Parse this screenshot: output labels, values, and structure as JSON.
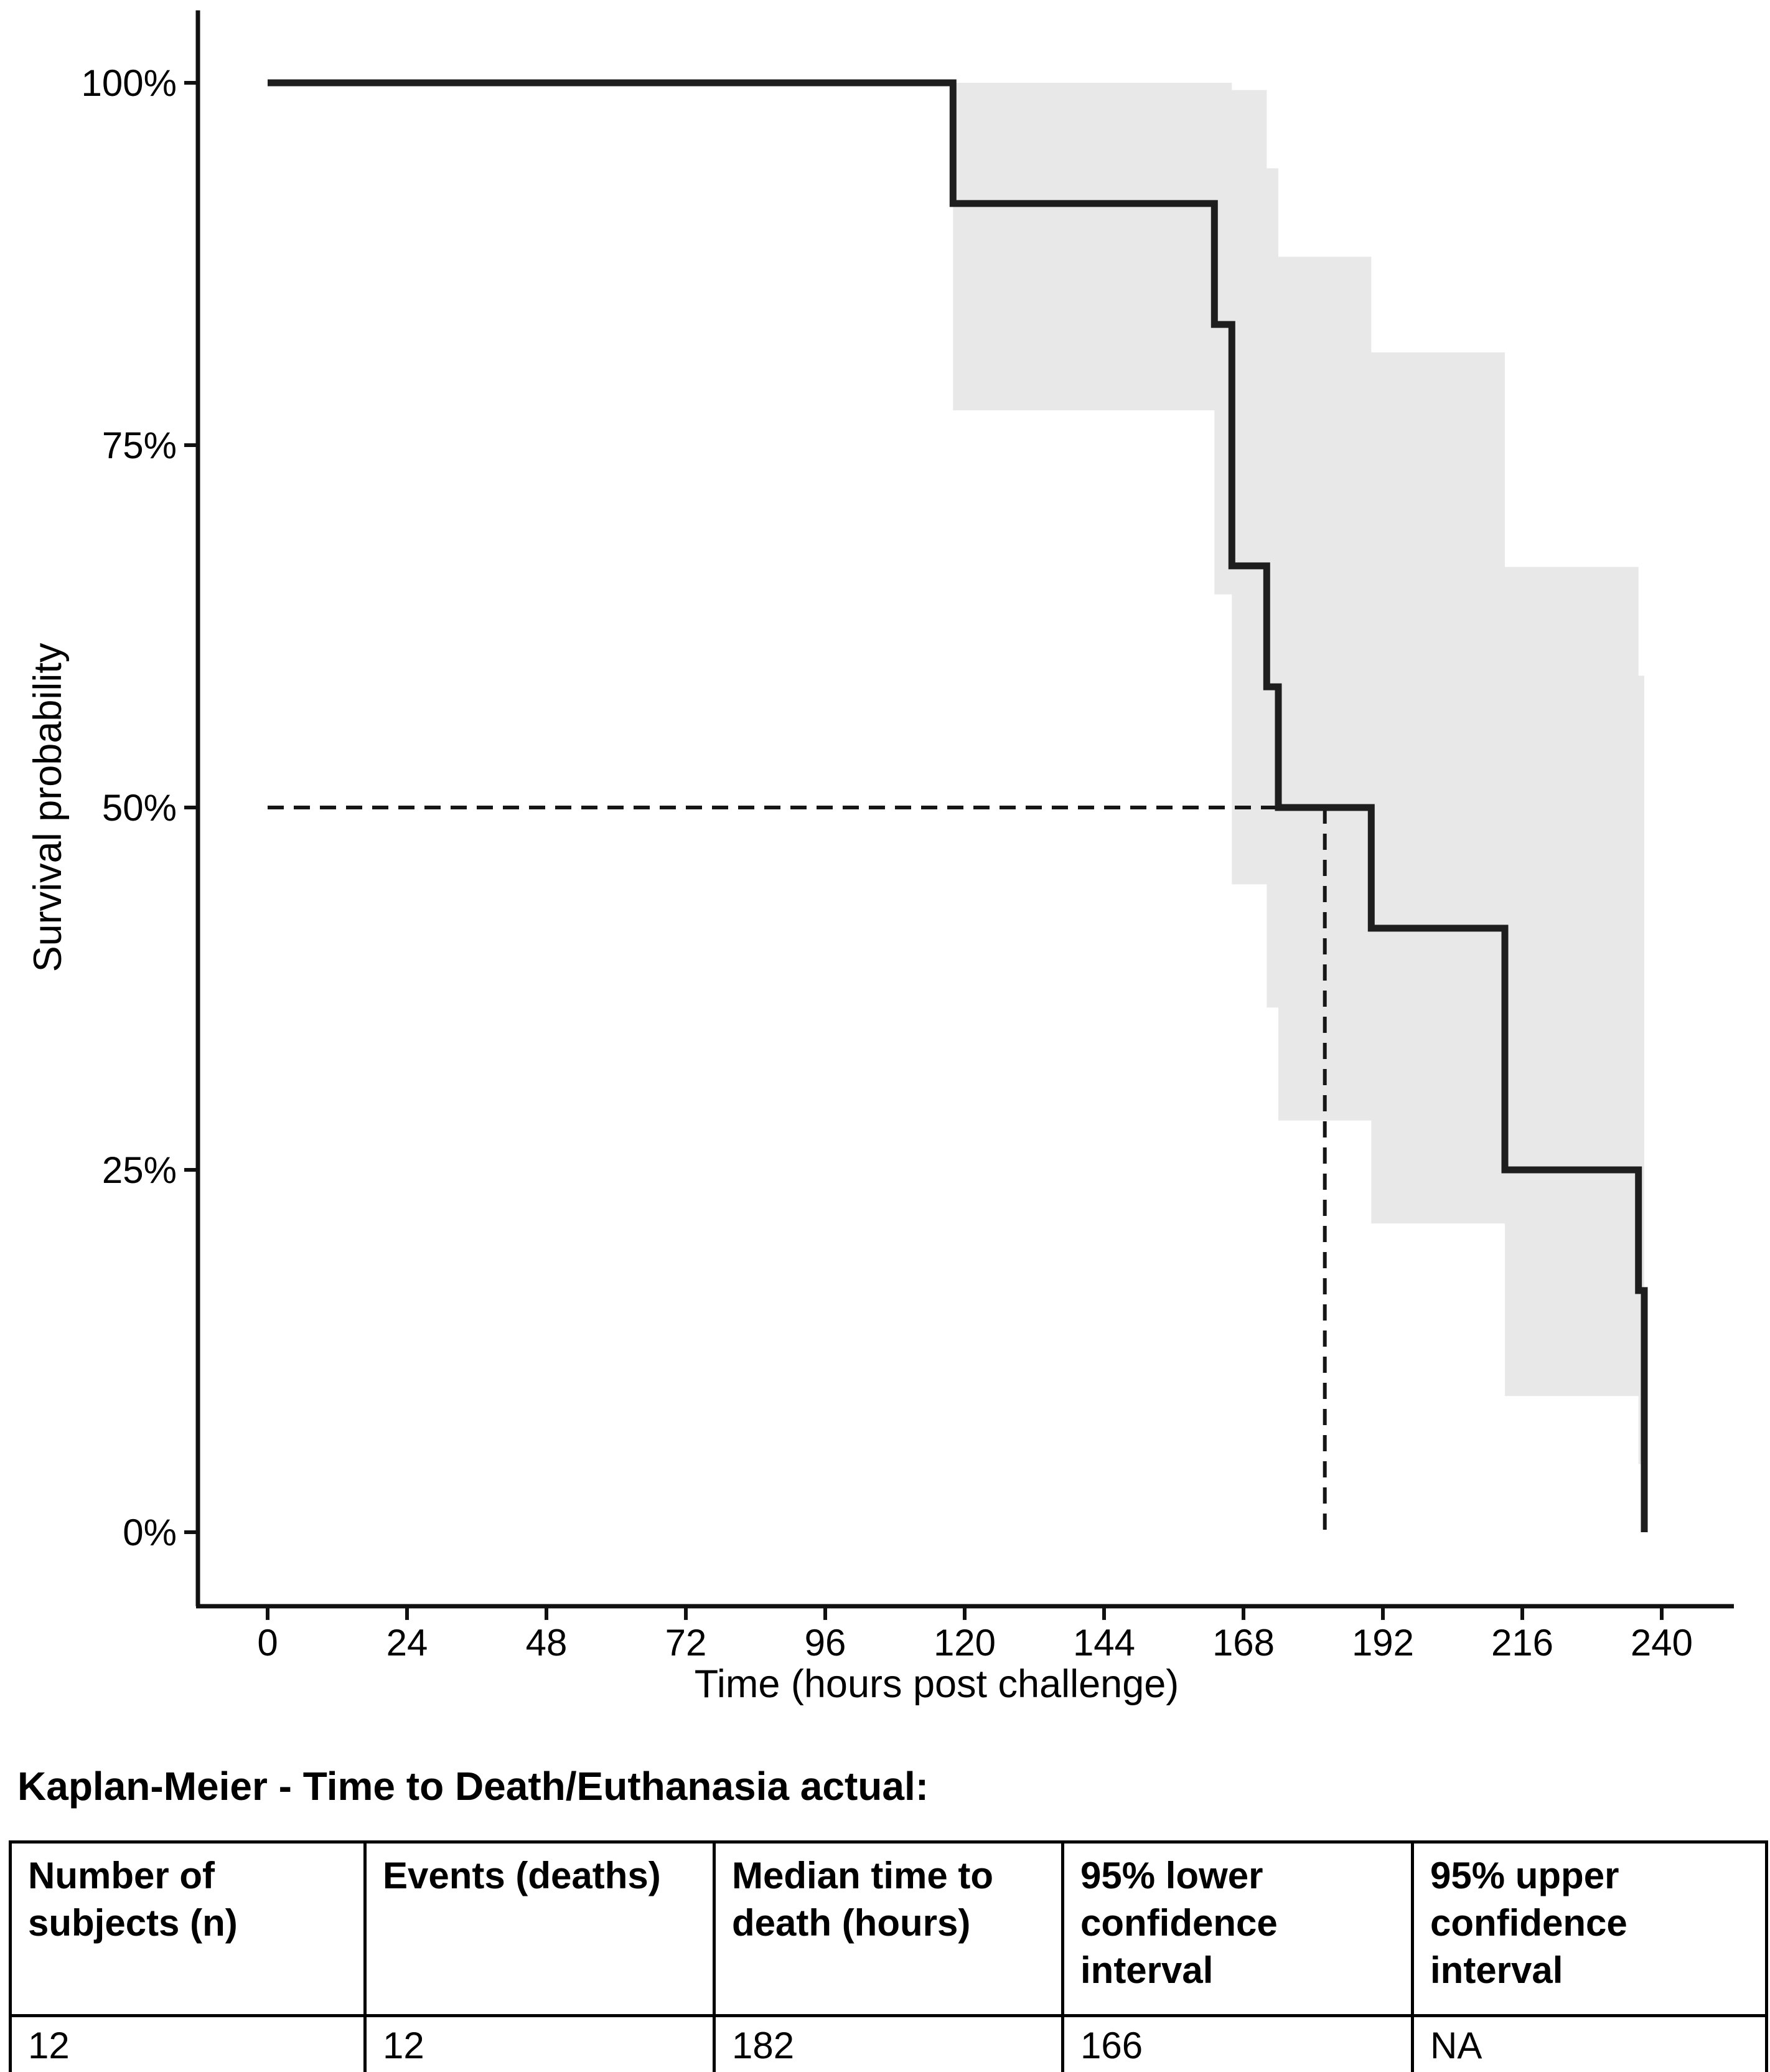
{
  "table_title": "Kaplan-Meier - Time to Death/Euthanasia actual:",
  "table": {
    "headers": [
      "Number of subjects (n)",
      "Events (deaths)",
      "Median time to death (hours)",
      "95% lower confidence interval",
      "95% upper confidence interval"
    ],
    "row": [
      "12",
      "12",
      "182",
      "166",
      "NA"
    ]
  },
  "chart_data": {
    "type": "line",
    "subtype": "kaplan-meier-step",
    "title": "",
    "xlabel": "Time (hours post challenge)",
    "ylabel": "Survival probability",
    "xlim": [
      -12,
      252
    ],
    "ylim": [
      -5,
      105
    ],
    "grid": false,
    "legend": "none",
    "x_axis": {
      "label": "Time (hours post challenge)",
      "ticks": [
        {
          "v": 0,
          "label": "0"
        },
        {
          "v": 24,
          "label": "24"
        },
        {
          "v": 48,
          "label": "48"
        },
        {
          "v": 72,
          "label": "72"
        },
        {
          "v": 96,
          "label": "96"
        },
        {
          "v": 120,
          "label": "120"
        },
        {
          "v": 144,
          "label": "144"
        },
        {
          "v": 168,
          "label": "168"
        },
        {
          "v": 192,
          "label": "192"
        },
        {
          "v": 216,
          "label": "216"
        },
        {
          "v": 240,
          "label": "240"
        }
      ]
    },
    "y_axis": {
      "label": "Survival probability",
      "ticks": [
        {
          "v": 0,
          "label": "0%"
        },
        {
          "v": 25,
          "label": "25%"
        },
        {
          "v": 50,
          "label": "50%"
        },
        {
          "v": 75,
          "label": "75%"
        },
        {
          "v": 100,
          "label": "100%"
        }
      ]
    },
    "n_subjects": 12,
    "n_events": 12,
    "event_times_hours": [
      118,
      163,
      166,
      166,
      172,
      174,
      190,
      213,
      213,
      236,
      237,
      237
    ],
    "survival_steps": [
      [
        0,
        100
      ],
      [
        118,
        100
      ],
      [
        118,
        91.67
      ],
      [
        163,
        91.67
      ],
      [
        163,
        83.33
      ],
      [
        166,
        83.33
      ],
      [
        166,
        66.67
      ],
      [
        172,
        66.67
      ],
      [
        172,
        58.33
      ],
      [
        174,
        58.33
      ],
      [
        174,
        50
      ],
      [
        190,
        50
      ],
      [
        190,
        41.67
      ],
      [
        213,
        41.67
      ],
      [
        213,
        25
      ],
      [
        236,
        25
      ],
      [
        236,
        16.67
      ],
      [
        237,
        16.67
      ],
      [
        237,
        0
      ]
    ],
    "ci_upper_steps": [
      [
        118,
        100
      ],
      [
        166,
        100
      ],
      [
        166,
        99.5
      ],
      [
        172,
        99.5
      ],
      [
        172,
        94.1
      ],
      [
        174,
        94.1
      ],
      [
        174,
        88.0
      ],
      [
        190,
        88.0
      ],
      [
        190,
        81.4
      ],
      [
        213,
        81.4
      ],
      [
        213,
        66.6
      ],
      [
        236,
        66.6
      ],
      [
        236,
        59.1
      ],
      [
        237,
        59.1
      ]
    ],
    "ci_lower_steps": [
      [
        118,
        77.4
      ],
      [
        163,
        77.4
      ],
      [
        163,
        64.7
      ],
      [
        166,
        64.7
      ],
      [
        166,
        44.7
      ],
      [
        172,
        44.7
      ],
      [
        172,
        36.2
      ],
      [
        174,
        36.2
      ],
      [
        174,
        28.4
      ],
      [
        190,
        28.4
      ],
      [
        190,
        21.3
      ],
      [
        213,
        21.3
      ],
      [
        213,
        9.4
      ],
      [
        236,
        9.4
      ],
      [
        236,
        4.7
      ],
      [
        237,
        4.7
      ]
    ],
    "median": {
      "time": 182,
      "survival_pct": 50
    },
    "median_line_h": [
      [
        0,
        50
      ],
      [
        182,
        50
      ]
    ],
    "median_line_v": [
      [
        182,
        50
      ],
      [
        182,
        0
      ]
    ],
    "colors": {
      "curve": "#1e1e1e",
      "ci_band": "#e8e8e8",
      "axis": "#111111",
      "dashed": "#161616",
      "text": "#000000"
    }
  }
}
